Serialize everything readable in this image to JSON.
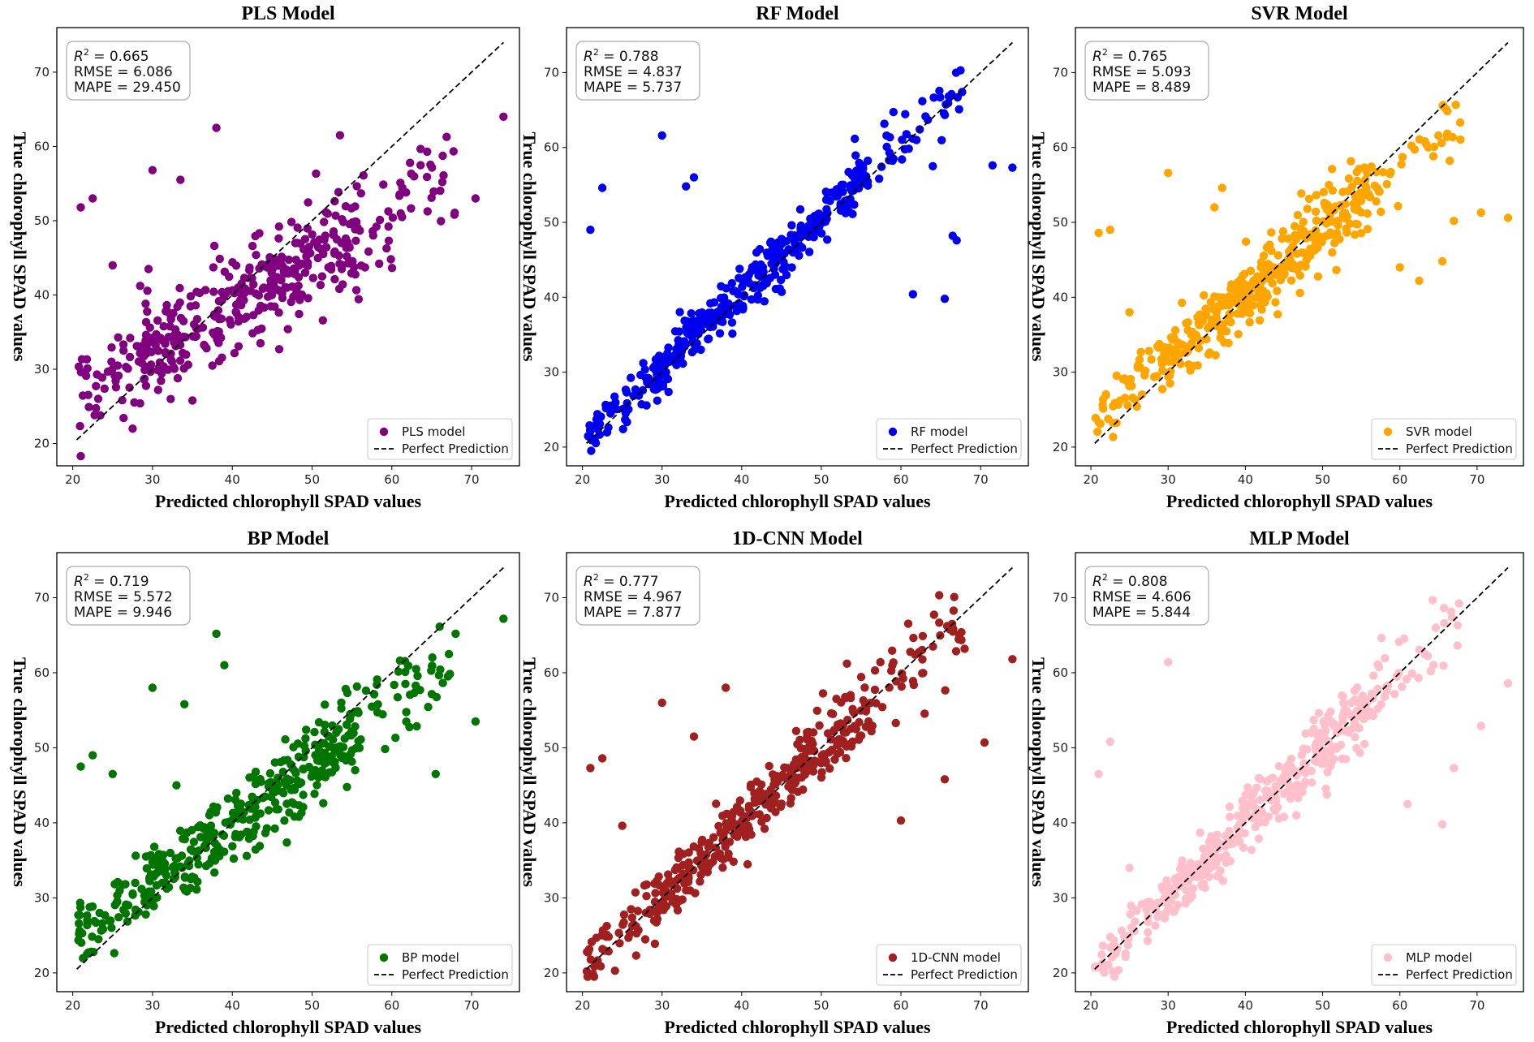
{
  "chart_data": [
    {
      "type": "scatter",
      "title": "PLS Model",
      "xlabel": "Predicted chlorophyll SPAD values",
      "ylabel": "True chlorophyll SPAD values",
      "xlim": [
        18,
        76
      ],
      "ylim": [
        17,
        76
      ],
      "xticks": [
        20,
        30,
        40,
        50,
        60,
        70
      ],
      "yticks": [
        20,
        30,
        40,
        50,
        60,
        70
      ],
      "color": "#800080",
      "legend": [
        "PLS model",
        "Perfect Prediction"
      ],
      "legend_position": "lower right",
      "stats": {
        "r2_label": "R",
        "r2_sup": "2",
        "r2": " = 0.665",
        "rmse": "RMSE = 6.086",
        "mape": "MAPE = 29.450"
      },
      "perfect_line": [
        20.5,
        74
      ],
      "model_params": {
        "slope": 0.64,
        "intercept": 13.0,
        "noise": 3.8,
        "seed": 11,
        "count": 420
      },
      "outliers": [
        [
          21,
          51.8
        ],
        [
          22.5,
          53
        ],
        [
          27.5,
          22
        ],
        [
          35,
          25.8
        ],
        [
          21,
          18.3
        ],
        [
          30,
          56.8
        ],
        [
          38,
          62.5
        ],
        [
          53.5,
          61.5
        ],
        [
          74,
          64
        ],
        [
          70.5,
          53
        ],
        [
          25,
          44
        ],
        [
          29.5,
          43.5
        ],
        [
          33.5,
          55.5
        ]
      ]
    },
    {
      "type": "scatter",
      "title": "RF Model",
      "xlabel": "Predicted chlorophyll SPAD values",
      "ylabel": "True chlorophyll SPAD values",
      "xlim": [
        18,
        76
      ],
      "ylim": [
        17.5,
        76
      ],
      "xticks": [
        20,
        30,
        40,
        50,
        60,
        70
      ],
      "yticks": [
        20,
        30,
        40,
        50,
        60,
        70
      ],
      "color": "#0000ee",
      "legend": [
        "RF model",
        "Perfect Prediction"
      ],
      "legend_position": "lower right",
      "stats": {
        "r2_label": "R",
        "r2_sup": "2",
        "r2": " = 0.788",
        "rmse": "RMSE = 4.837",
        "mape": "MAPE = 5.737"
      },
      "perfect_line": [
        20.5,
        74
      ],
      "model_params": {
        "slope": 1.0,
        "intercept": 0.6,
        "noise": 2.0,
        "seed": 23,
        "count": 420
      },
      "outliers": [
        [
          21,
          49
        ],
        [
          22.5,
          54.6
        ],
        [
          30,
          61.6
        ],
        [
          33,
          54.8
        ],
        [
          34,
          56
        ],
        [
          61.5,
          40.4
        ],
        [
          65.5,
          39.8
        ],
        [
          71.5,
          57.6
        ],
        [
          74,
          57.3
        ],
        [
          66.5,
          48.2
        ],
        [
          67,
          47.6
        ],
        [
          64,
          57.5
        ]
      ]
    },
    {
      "type": "scatter",
      "title": "SVR Model",
      "xlabel": "Predicted chlorophyll SPAD values",
      "ylabel": "True chlorophyll SPAD values",
      "xlim": [
        18,
        76
      ],
      "ylim": [
        17.5,
        76
      ],
      "xticks": [
        20,
        30,
        40,
        50,
        60,
        70
      ],
      "yticks": [
        20,
        30,
        40,
        50,
        60,
        70
      ],
      "color": "#ffa500",
      "legend": [
        "SVR model",
        "Perfect Prediction"
      ],
      "legend_position": "lower right",
      "stats": {
        "r2_label": "R",
        "r2_sup": "2",
        "r2": " = 0.765",
        "rmse": "RMSE = 5.093",
        "mape": "MAPE = 8.489"
      },
      "perfect_line": [
        20.5,
        74
      ],
      "model_params": {
        "slope": 0.85,
        "intercept": 6.5,
        "noise": 2.6,
        "seed": 37,
        "count": 420
      },
      "outliers": [
        [
          21,
          48.6
        ],
        [
          22.5,
          49
        ],
        [
          30,
          56.6
        ],
        [
          25,
          38
        ],
        [
          70.5,
          51.3
        ],
        [
          74,
          50.6
        ],
        [
          65.5,
          44.8
        ],
        [
          67,
          50.2
        ],
        [
          60,
          44
        ],
        [
          62.5,
          42.2
        ],
        [
          37,
          54.6
        ],
        [
          36,
          52
        ]
      ]
    },
    {
      "type": "scatter",
      "title": "BP Model",
      "xlabel": "Predicted chlorophyll SPAD values",
      "ylabel": "True chlorophyll SPAD values",
      "xlim": [
        18,
        76
      ],
      "ylim": [
        17.5,
        76
      ],
      "xticks": [
        20,
        30,
        40,
        50,
        60,
        70
      ],
      "yticks": [
        20,
        30,
        40,
        50,
        60,
        70
      ],
      "color": "#007500",
      "legend": [
        "BP model",
        "Perfect Prediction"
      ],
      "legend_position": "lower right",
      "stats": {
        "r2_label": "R",
        "r2_sup": "2",
        "r2": " = 0.719",
        "rmse": "RMSE = 5.572",
        "mape": "MAPE = 9.946"
      },
      "perfect_line": [
        20.5,
        74
      ],
      "model_params": {
        "slope": 0.78,
        "intercept": 8.6,
        "noise": 3.0,
        "seed": 53,
        "count": 420
      },
      "outliers": [
        [
          21,
          47.5
        ],
        [
          22.5,
          49
        ],
        [
          25,
          46.5
        ],
        [
          30,
          58
        ],
        [
          38,
          65.2
        ],
        [
          39,
          61
        ],
        [
          74,
          67.2
        ],
        [
          68,
          65.2
        ],
        [
          70.5,
          53.5
        ],
        [
          65.5,
          46.5
        ],
        [
          34,
          55.8
        ],
        [
          33,
          45
        ]
      ]
    },
    {
      "type": "scatter",
      "title": "1D-CNN Model",
      "xlabel": "Predicted chlorophyll SPAD values",
      "ylabel": "True chlorophyll SPAD values",
      "xlim": [
        18,
        76
      ],
      "ylim": [
        17.5,
        76
      ],
      "xticks": [
        20,
        30,
        40,
        50,
        60,
        70
      ],
      "yticks": [
        20,
        30,
        40,
        50,
        60,
        70
      ],
      "color": "#a02020",
      "legend": [
        "1D-CNN model",
        "Perfect Prediction"
      ],
      "legend_position": "lower right",
      "stats": {
        "r2_label": "R",
        "r2_sup": "2",
        "r2": " = 0.777",
        "rmse": "RMSE = 4.967",
        "mape": "MAPE = 7.877"
      },
      "perfect_line": [
        20.5,
        74
      ],
      "model_params": {
        "slope": 0.97,
        "intercept": 1.5,
        "noise": 2.6,
        "seed": 71,
        "count": 420
      },
      "outliers": [
        [
          21,
          47.3
        ],
        [
          22.5,
          48.6
        ],
        [
          25,
          39.6
        ],
        [
          30,
          56
        ],
        [
          38,
          58
        ],
        [
          74,
          61.8
        ],
        [
          68,
          63.2
        ],
        [
          70.5,
          50.7
        ],
        [
          65.5,
          45.8
        ],
        [
          60,
          40.3
        ],
        [
          34,
          51.5
        ]
      ]
    },
    {
      "type": "scatter",
      "title": "MLP Model",
      "xlabel": "Predicted chlorophyll SPAD values",
      "ylabel": "True chlorophyll SPAD values",
      "xlim": [
        18,
        76
      ],
      "ylim": [
        17.5,
        76
      ],
      "xticks": [
        20,
        30,
        40,
        50,
        60,
        70
      ],
      "yticks": [
        20,
        30,
        40,
        50,
        60,
        70
      ],
      "color": "#ffc0cb",
      "legend": [
        "MLP model",
        "Perfect Prediction"
      ],
      "legend_position": "lower right",
      "stats": {
        "r2_label": "R",
        "r2_sup": "2",
        "r2": " = 0.808",
        "rmse": "RMSE = 4.606",
        "mape": "MAPE = 5.844"
      },
      "perfect_line": [
        20.5,
        74
      ],
      "model_params": {
        "slope": 0.99,
        "intercept": 0.4,
        "noise": 2.3,
        "seed": 89,
        "count": 420
      },
      "outliers": [
        [
          21,
          46.5
        ],
        [
          22.5,
          50.8
        ],
        [
          30,
          61.4
        ],
        [
          25,
          34
        ],
        [
          74,
          58.6
        ],
        [
          70.5,
          52.9
        ],
        [
          67,
          47.3
        ],
        [
          65.5,
          39.8
        ],
        [
          61,
          42.5
        ],
        [
          64,
          60.2
        ]
      ]
    }
  ]
}
